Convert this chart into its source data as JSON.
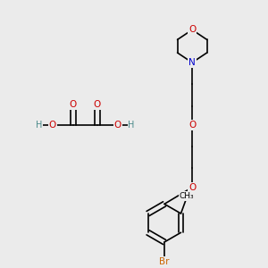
{
  "bg_color": "#ebebeb",
  "atom_colors": {
    "C": "#000000",
    "O": "#cc0000",
    "N": "#0000cc",
    "Br": "#cc6600",
    "H": "#4a8a8a"
  },
  "bond_color": "#000000"
}
